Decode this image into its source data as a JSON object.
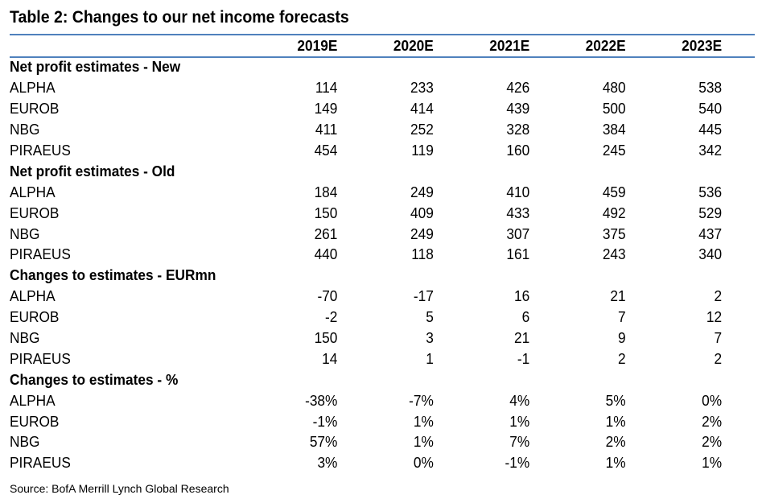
{
  "title": "Table 2: Changes to our net income forecasts",
  "columns": [
    "2019E",
    "2020E",
    "2021E",
    "2022E",
    "2023E"
  ],
  "sections": [
    {
      "title": "Net profit estimates - New",
      "rows": [
        {
          "name": "ALPHA",
          "values": [
            "114",
            "233",
            "426",
            "480",
            "538"
          ]
        },
        {
          "name": "EUROB",
          "values": [
            "149",
            "414",
            "439",
            "500",
            "540"
          ]
        },
        {
          "name": "NBG",
          "values": [
            "411",
            "252",
            "328",
            "384",
            "445"
          ]
        },
        {
          "name": "PIRAEUS",
          "values": [
            "454",
            "119",
            "160",
            "245",
            "342"
          ]
        }
      ]
    },
    {
      "title": "Net profit estimates - Old",
      "rows": [
        {
          "name": "ALPHA",
          "values": [
            "184",
            "249",
            "410",
            "459",
            "536"
          ]
        },
        {
          "name": "EUROB",
          "values": [
            "150",
            "409",
            "433",
            "492",
            "529"
          ]
        },
        {
          "name": "NBG",
          "values": [
            "261",
            "249",
            "307",
            "375",
            "437"
          ]
        },
        {
          "name": "PIRAEUS",
          "values": [
            "440",
            "118",
            "161",
            "243",
            "340"
          ]
        }
      ]
    },
    {
      "title": "Changes to estimates - EURmn",
      "rows": [
        {
          "name": "ALPHA",
          "values": [
            "-70",
            "-17",
            "16",
            "21",
            "2"
          ]
        },
        {
          "name": "EUROB",
          "values": [
            "-2",
            "5",
            "6",
            "7",
            "12"
          ]
        },
        {
          "name": "NBG",
          "values": [
            "150",
            "3",
            "21",
            "9",
            "7"
          ]
        },
        {
          "name": "PIRAEUS",
          "values": [
            "14",
            "1",
            "-1",
            "2",
            "2"
          ]
        }
      ]
    },
    {
      "title": "Changes to estimates - %",
      "rows": [
        {
          "name": "ALPHA",
          "values": [
            "-38%",
            "-7%",
            "4%",
            "5%",
            "0%"
          ]
        },
        {
          "name": "EUROB",
          "values": [
            "-1%",
            "1%",
            "1%",
            "1%",
            "2%"
          ]
        },
        {
          "name": "NBG",
          "values": [
            "57%",
            "1%",
            "7%",
            "2%",
            "2%"
          ]
        },
        {
          "name": "PIRAEUS",
          "values": [
            "3%",
            "0%",
            "-1%",
            "1%",
            "1%"
          ]
        }
      ]
    }
  ],
  "source": "Source: BofA Merrill Lynch Global Research",
  "colors": {
    "rule": "#4f81bd"
  }
}
